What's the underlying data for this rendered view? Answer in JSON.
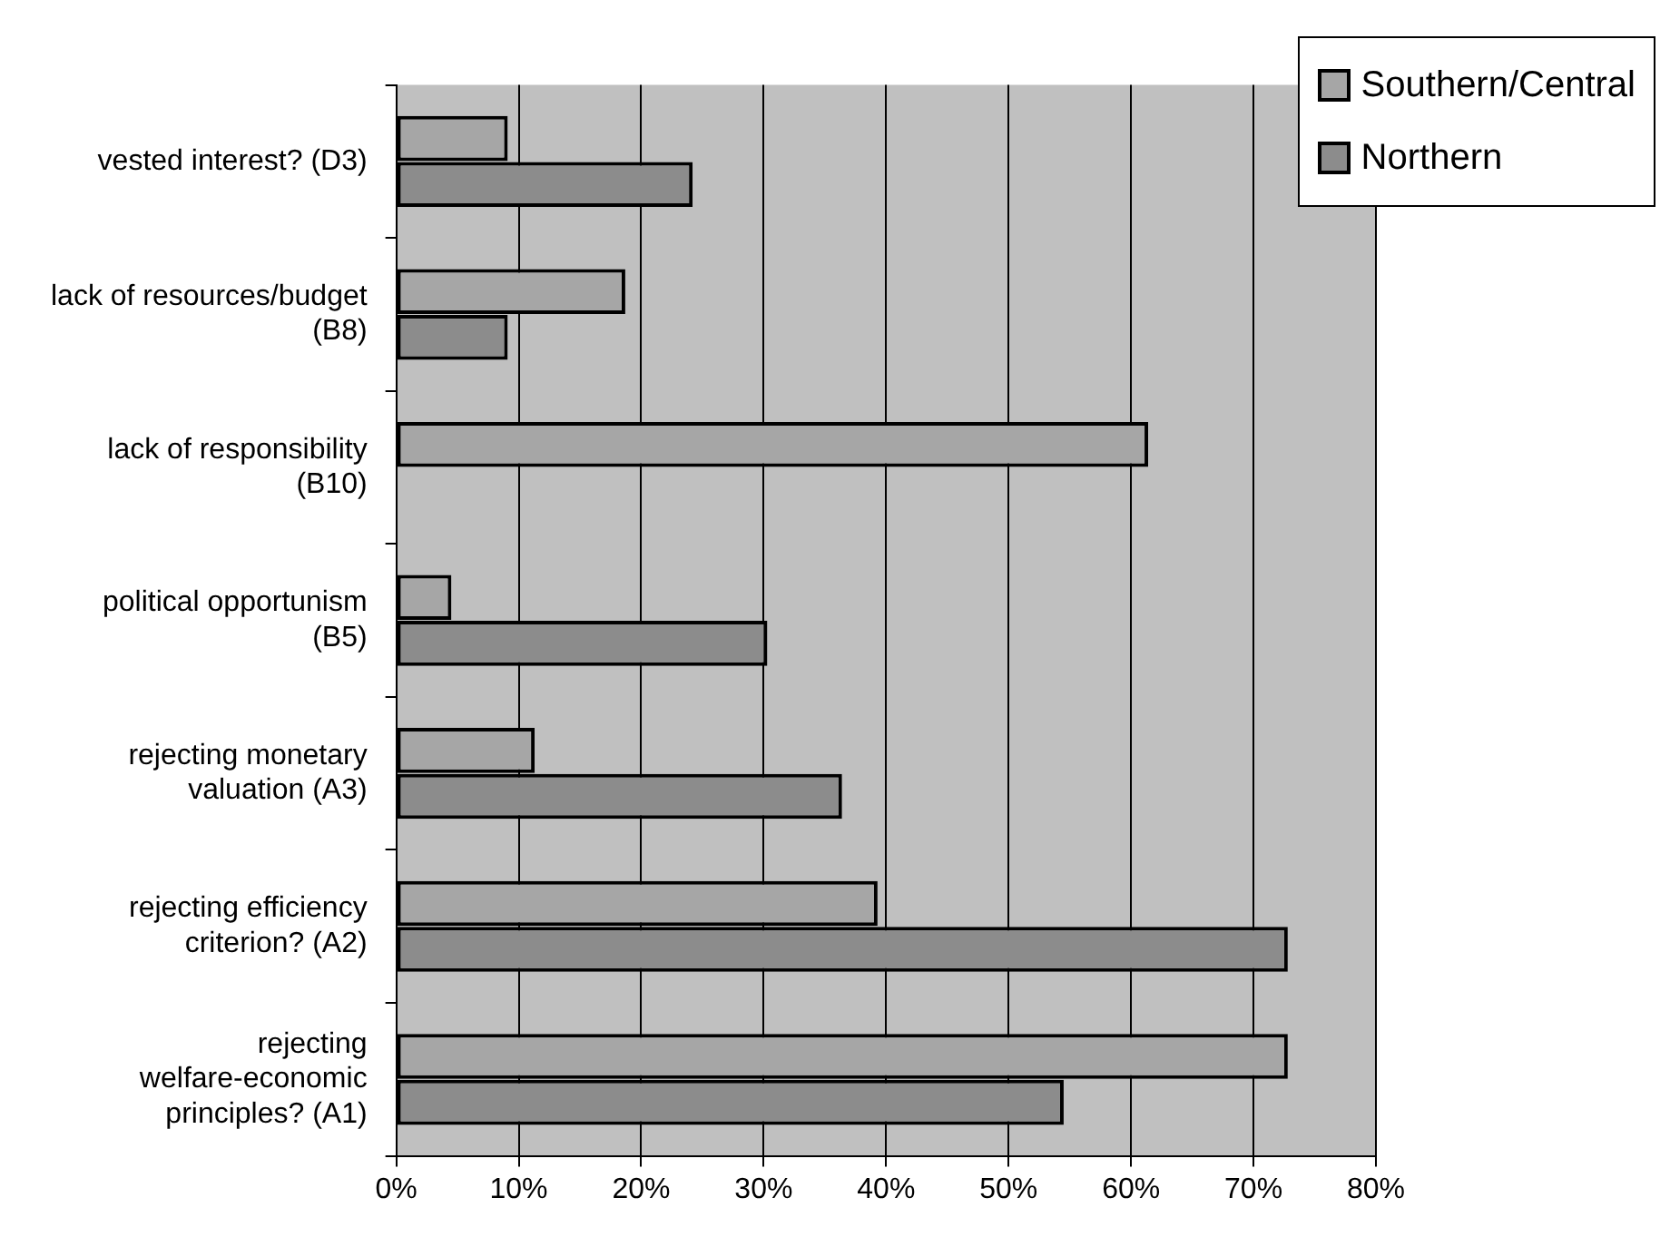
{
  "chart_data": {
    "type": "bar",
    "orientation": "horizontal",
    "categories": [
      "vested interest? (D3)",
      "lack of resources/budget (B8)",
      "lack of responsibility (B10)",
      "political opportunism (B5)",
      "rejecting monetary valuation (A3)",
      "rejecting efficiency criterion? (A2)",
      "rejecting welfare-economic principles? (A1)"
    ],
    "series": [
      {
        "name": "Southern/Central",
        "color": "#a6a6a6",
        "values": [
          9.1,
          18.7,
          61.4,
          4.5,
          11.3,
          39.3,
          72.8
        ]
      },
      {
        "name": "Northern",
        "color": "#8c8c8c",
        "values": [
          24.2,
          9.1,
          0,
          30.3,
          36.4,
          72.8,
          54.5
        ]
      }
    ],
    "xlim": [
      0,
      80
    ],
    "xticks": [
      {
        "value": 0,
        "label": "0%"
      },
      {
        "value": 10,
        "label": "10%"
      },
      {
        "value": 20,
        "label": "20%"
      },
      {
        "value": 30,
        "label": "30%"
      },
      {
        "value": 40,
        "label": "40%"
      },
      {
        "value": 50,
        "label": "50%"
      },
      {
        "value": 60,
        "label": "60%"
      },
      {
        "value": 70,
        "label": "70%"
      },
      {
        "value": 80,
        "label": "80%"
      }
    ],
    "grid": "x",
    "legend": "top right"
  }
}
